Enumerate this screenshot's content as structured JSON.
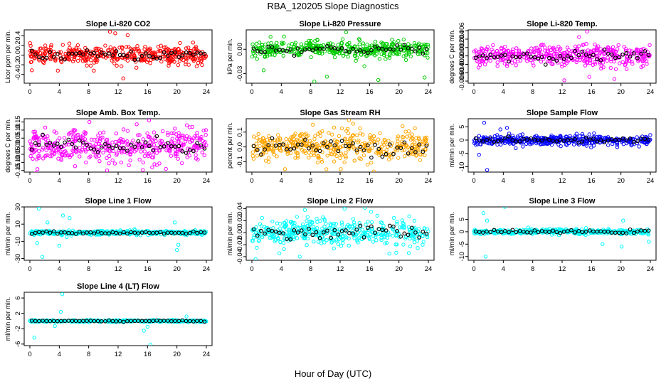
{
  "figure": {
    "title": "RBA_120205  Slope Diagnostics",
    "xlabel": "Hour of Day (UTC)"
  },
  "chart_data": [
    {
      "type": "scatter",
      "title": "Slope Li-820 CO2",
      "ylabel": "Licor ppm per min.",
      "xlim": [
        0,
        24
      ],
      "ylim": [
        -0.58,
        0.52
      ],
      "yticks": [
        -0.4,
        -0.2,
        0.0,
        0.2,
        0.4
      ],
      "ytick_labels": [
        "-0.4",
        "-0.2",
        "0.0",
        "0.2",
        "0.4"
      ],
      "xticks": [
        0,
        4,
        8,
        12,
        16,
        20,
        24
      ],
      "series_colors": {
        "points": "#ff0000",
        "hourly": "#000000"
      },
      "summary": {
        "center": 0.0,
        "spread": 0.09,
        "outliers": [
          [
            10.9,
            0.48
          ],
          [
            11.6,
            0.45
          ],
          [
            12.7,
            -0.48
          ],
          [
            8.7,
            -0.32
          ],
          [
            3.8,
            -0.32
          ],
          [
            13.3,
            0.41
          ]
        ]
      }
    },
    {
      "type": "scatter",
      "title": "Slope Li-820 Pressure",
      "ylabel": "kPa per min.",
      "xlim": [
        0,
        24
      ],
      "ylim": [
        -0.042,
        0.024
      ],
      "yticks": [
        -0.03,
        0.0
      ],
      "ytick_labels": [
        "-0.03",
        "0.00"
      ],
      "xticks": [
        0,
        4,
        8,
        12,
        16,
        20,
        24
      ],
      "series_colors": {
        "points": "#00cc00",
        "hourly": "#000000"
      },
      "summary": {
        "center": 0.0,
        "spread": 0.005,
        "outliers": [
          [
            12.8,
            0.021
          ],
          [
            8.5,
            -0.04
          ],
          [
            10.2,
            -0.034
          ],
          [
            15.3,
            -0.021
          ],
          [
            17.2,
            -0.038
          ],
          [
            23.5,
            -0.035
          ],
          [
            1.6,
            -0.026
          ],
          [
            0.7,
            -0.012
          ]
        ]
      }
    },
    {
      "type": "scatter",
      "title": "Slope Li-820 Temp.",
      "ylabel": "degrees C per min.",
      "xlim": [
        0,
        24
      ],
      "ylim": [
        -0.0065,
        0.0062
      ],
      "yticks": [
        -0.006,
        -0.004,
        -0.002,
        0.0,
        0.002,
        0.004,
        0.006
      ],
      "ytick_labels": [
        "-0.006",
        "-0.004",
        "-0.002",
        "0.000",
        "0.002",
        "0.004",
        "0.006"
      ],
      "xticks": [
        0,
        4,
        8,
        12,
        16,
        20,
        24
      ],
      "series_colors": {
        "points": "#ff00ff",
        "hourly": "#000000"
      },
      "summary": {
        "center": 0.0,
        "spread": 0.0012,
        "outliers": [
          [
            15.4,
            0.0058
          ],
          [
            12.3,
            -0.0058
          ],
          [
            19.1,
            -0.0055
          ],
          [
            15.7,
            -0.005
          ],
          [
            14.3,
            0.0045
          ],
          [
            17.3,
            -0.003
          ]
        ]
      }
    },
    {
      "type": "scatter",
      "title": "Slope Amb. Box Temp.",
      "ylabel": "degrees C per min.",
      "xlim": [
        0,
        24
      ],
      "ylim": [
        -0.16,
        0.17
      ],
      "yticks": [
        -0.15,
        -0.1,
        -0.05,
        0.0,
        0.05,
        0.1,
        0.15
      ],
      "ytick_labels": [
        "-0.15",
        "-0.10",
        "-0.05",
        "0.00",
        "0.05",
        "0.10",
        "0.15"
      ],
      "xticks": [
        0,
        4,
        8,
        12,
        16,
        20,
        24
      ],
      "series_colors": {
        "points": "#ff00ff",
        "hourly": "#000000"
      },
      "summary": {
        "center": 0.0,
        "spread": 0.05,
        "outliers": [
          [
            16.2,
            0.16
          ],
          [
            18.5,
            -0.14
          ],
          [
            10.5,
            -0.15
          ],
          [
            22.1,
            0.12
          ],
          [
            8.1,
            0.15
          ]
        ]
      }
    },
    {
      "type": "scatter",
      "title": "Slope Gas Stream RH",
      "ylabel": "percent per min.",
      "xlim": [
        0,
        24
      ],
      "ylim": [
        -0.17,
        0.19
      ],
      "yticks": [
        -0.1,
        0.0,
        0.1
      ],
      "ytick_labels": [
        "-0.1",
        "0.0",
        "0.1"
      ],
      "xticks": [
        0,
        4,
        8,
        12,
        16,
        20,
        24
      ],
      "series_colors": {
        "points": "#ffa500",
        "hourly": "#000000"
      },
      "summary": {
        "center": 0.0,
        "spread": 0.05,
        "outliers": [
          [
            13.2,
            0.18
          ],
          [
            4.5,
            -0.15
          ],
          [
            8.3,
            0.15
          ],
          [
            12.1,
            -0.15
          ],
          [
            20.5,
            0.14
          ]
        ]
      }
    },
    {
      "type": "scatter",
      "title": "Slope Sample Flow",
      "ylabel": "ml/min per min.",
      "xlim": [
        0,
        24
      ],
      "ylim": [
        -12,
        8
      ],
      "yticks": [
        -10,
        -5,
        0,
        5
      ],
      "ytick_labels": [
        "-10",
        "-5",
        "0",
        "5"
      ],
      "xticks": [
        0,
        4,
        8,
        12,
        16,
        20,
        24
      ],
      "series_colors": {
        "points": "#0000ff",
        "hourly": "#000000"
      },
      "summary": {
        "center": 0.0,
        "spread": 0.9,
        "outliers": [
          [
            1.8,
            -11.2
          ],
          [
            1.4,
            6.5
          ],
          [
            4.5,
            4.6
          ],
          [
            3.6,
            4.0
          ],
          [
            0.7,
            -5.5
          ],
          [
            19.5,
            -2.6
          ]
        ]
      }
    },
    {
      "type": "scatter",
      "title": "Slope Line 1 Flow",
      "ylabel": "ml/min per min.",
      "xlim": [
        0,
        24
      ],
      "ylim": [
        -32,
        30
      ],
      "yticks": [
        -30,
        -10,
        10,
        30
      ],
      "ytick_labels": [
        "-30",
        "-10",
        "10",
        "30"
      ],
      "xticks": [
        0,
        4,
        8,
        12,
        16,
        20,
        24
      ],
      "series_colors": {
        "points": "#00ffff",
        "hourly": "#000000"
      },
      "summary": {
        "center": 0.0,
        "spread": 1.2,
        "outliers": [
          [
            1.2,
            28
          ],
          [
            1.7,
            -28
          ],
          [
            1.0,
            -12
          ],
          [
            4.5,
            20
          ],
          [
            4.0,
            -15
          ],
          [
            5.4,
            17
          ],
          [
            20.0,
            -20
          ],
          [
            19.7,
            12
          ],
          [
            20.2,
            -14
          ],
          [
            2.4,
            12
          ],
          [
            5.0,
            -5
          ]
        ]
      }
    },
    {
      "type": "scatter",
      "title": "Slope Line 2 Flow",
      "ylabel": "ml/min per min.",
      "xlim": [
        0,
        24
      ],
      "ylim": [
        -0.046,
        0.043
      ],
      "yticks": [
        -0.04,
        -0.02,
        0.0,
        0.02,
        0.04
      ],
      "ytick_labels": [
        "-0.04",
        "-0.02",
        "0.00",
        "0.02",
        "0.04"
      ],
      "xticks": [
        0,
        4,
        8,
        12,
        16,
        20,
        24
      ],
      "series_colors": {
        "points": "#00ffff",
        "hourly": "#000000"
      },
      "summary": {
        "center": 0.0,
        "spread": 0.011,
        "outliers": [
          [
            0.5,
            -0.044
          ],
          [
            12.6,
            0.04
          ],
          [
            6.5,
            -0.04
          ],
          [
            18.7,
            -0.035
          ],
          [
            16.2,
            0.035
          ],
          [
            7.2,
            0.038
          ]
        ]
      }
    },
    {
      "type": "scatter",
      "title": "Slope Line 3 Flow",
      "ylabel": "ml/min per min.",
      "xlim": [
        0,
        24
      ],
      "ylim": [
        -11.5,
        10
      ],
      "yticks": [
        -10,
        -5,
        0,
        5
      ],
      "ytick_labels": [
        "-10",
        "-5",
        "0",
        "5"
      ],
      "xticks": [
        0,
        4,
        8,
        12,
        16,
        20,
        24
      ],
      "series_colors": {
        "points": "#00ffff",
        "hourly": "#000000"
      },
      "summary": {
        "center": 0.0,
        "spread": 0.5,
        "outliers": [
          [
            4.2,
            10
          ],
          [
            1.6,
            -10
          ],
          [
            1.3,
            7.5
          ],
          [
            1.8,
            4.5
          ],
          [
            20.1,
            -6
          ],
          [
            20.3,
            4.5
          ],
          [
            17.5,
            -5
          ],
          [
            23.8,
            -4
          ]
        ]
      }
    },
    {
      "type": "scatter",
      "title": "Slope Line 4 (LT) Flow",
      "ylabel": "ml/min per min.",
      "xlim": [
        0,
        24
      ],
      "ylim": [
        -6.4,
        7.5
      ],
      "yticks": [
        -6,
        -2,
        2,
        6
      ],
      "ytick_labels": [
        "-6",
        "-2",
        "2",
        "6"
      ],
      "xticks": [
        0,
        4,
        8,
        12,
        16,
        20,
        24
      ],
      "series_colors": {
        "points": "#00ffff",
        "hourly": "#000000"
      },
      "summary": {
        "center": 0.0,
        "spread": 0.12,
        "outliers": [
          [
            4.4,
            7
          ],
          [
            0.6,
            -4.3
          ],
          [
            4.2,
            2.4
          ],
          [
            16.4,
            -6.1
          ],
          [
            15.5,
            -2.5
          ],
          [
            16.0,
            -1.5
          ],
          [
            21.3,
            1.2
          ],
          [
            3.4,
            -1.3
          ]
        ]
      }
    }
  ]
}
